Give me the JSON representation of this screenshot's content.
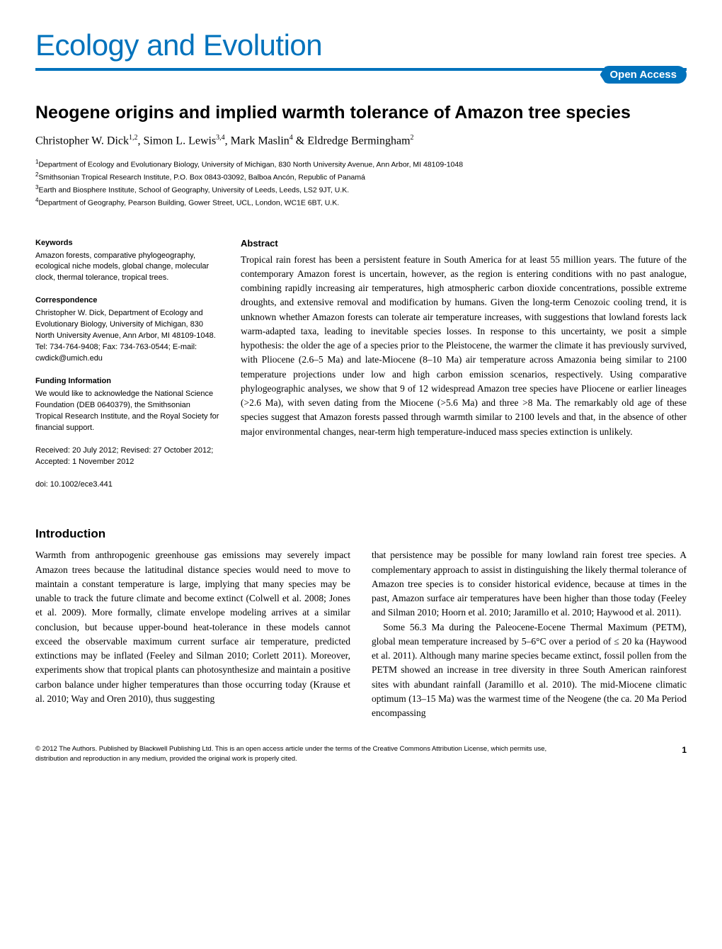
{
  "journal": {
    "name": "Ecology and Evolution",
    "open_access": "Open Access",
    "brand_color": "#0072bc"
  },
  "article": {
    "title": "Neogene origins and implied warmth tolerance of Amazon tree species",
    "authors_html": "Christopher W. Dick<sup>1,2</sup>, Simon L. Lewis<sup>3,4</sup>, Mark Maslin<sup>4</sup> & Eldredge Bermingham<sup>2</sup>",
    "affiliations": [
      "Department of Ecology and Evolutionary Biology, University of Michigan, 830 North University Avenue, Ann Arbor, MI 48109-1048",
      "Smithsonian Tropical Research Institute, P.O. Box 0843-03092, Balboa Ancón, Republic of Panamá",
      "Earth and Biosphere Institute, School of Geography, University of Leeds, Leeds, LS2 9JT, U.K.",
      "Department of Geography, Pearson Building, Gower Street, UCL, London, WC1E 6BT, U.K."
    ]
  },
  "sidebar": {
    "keywords_label": "Keywords",
    "keywords_text": "Amazon forests, comparative phylogeography, ecological niche models, global change, molecular clock, thermal tolerance, tropical trees.",
    "correspondence_label": "Correspondence",
    "correspondence_text": "Christopher W. Dick, Department of Ecology and Evolutionary Biology, University of Michigan, 830 North University Avenue, Ann Arbor, MI 48109-1048. Tel: 734-764-9408; Fax: 734-763-0544; E-mail: cwdick@umich.edu",
    "funding_label": "Funding Information",
    "funding_text": "We would like to acknowledge the National Science Foundation (DEB 0640379), the Smithsonian Tropical Research Institute, and the Royal Society for financial support.",
    "dates_text": "Received: 20 July 2012; Revised: 27 October 2012; Accepted: 1 November 2012",
    "doi_text": "doi: 10.1002/ece3.441"
  },
  "abstract": {
    "label": "Abstract",
    "text": "Tropical rain forest has been a persistent feature in South America for at least 55 million years. The future of the contemporary Amazon forest is uncertain, however, as the region is entering conditions with no past analogue, combining rapidly increasing air temperatures, high atmospheric carbon dioxide concentrations, possible extreme droughts, and extensive removal and modification by humans. Given the long-term Cenozoic cooling trend, it is unknown whether Amazon forests can tolerate air temperature increases, with suggestions that lowland forests lack warm-adapted taxa, leading to inevitable species losses. In response to this uncertainty, we posit a simple hypothesis: the older the age of a species prior to the Pleistocene, the warmer the climate it has previously survived, with Pliocene (2.6–5 Ma) and late-Miocene (8–10 Ma) air temperature across Amazonia being similar to 2100 temperature projections under low and high carbon emission scenarios, respectively. Using comparative phylogeographic analyses, we show that 9 of 12 widespread Amazon tree species have Pliocene or earlier lineages (>2.6 Ma), with seven dating from the Miocene (>5.6 Ma) and three >8 Ma. The remarkably old age of these species suggest that Amazon forests passed through warmth similar to 2100 levels and that, in the absence of other major environmental changes, near-term high temperature-induced mass species extinction is unlikely."
  },
  "intro": {
    "heading": "Introduction",
    "col1_p1": "Warmth from anthropogenic greenhouse gas emissions may severely impact Amazon trees because the latitudinal distance species would need to move to maintain a constant temperature is large, implying that many species may be unable to track the future climate and become extinct (Colwell et al. 2008; Jones et al. 2009). More formally, climate envelope modeling arrives at a similar conclusion, but because upper-bound heat-tolerance in these models cannot exceed the observable maximum current surface air temperature, predicted extinctions may be inflated (Feeley and Silman 2010; Corlett 2011). Moreover, experiments show that tropical plants can photosynthesize and maintain a positive carbon balance under higher temperatures than those occurring today (Krause et al. 2010; Way and Oren 2010), thus suggesting",
    "col2_p1": "that persistence may be possible for many lowland rain forest tree species. A complementary approach to assist in distinguishing the likely thermal tolerance of Amazon tree species is to consider historical evidence, because at times in the past, Amazon surface air temperatures have been higher than those today (Feeley and Silman 2010; Hoorn et al. 2010; Jaramillo et al. 2010; Haywood et al. 2011).",
    "col2_p2": "Some 56.3 Ma during the Paleocene-Eocene Thermal Maximum (PETM), global mean temperature increased by 5–6°C over a period of ≤ 20 ka (Haywood et al. 2011). Although many marine species became extinct, fossil pollen from the PETM showed an increase in tree diversity in three South American rainforest sites with abundant rainfall (Jaramillo et al. 2010). The mid-Miocene climatic optimum (13–15 Ma) was the warmest time of the Neogene (the ca. 20 Ma Period encompassing"
  },
  "footer": {
    "copyright": "© 2012 The Authors. Published by Blackwell Publishing Ltd. This is an open access article under the terms of the Creative Commons Attribution License, which permits use, distribution and reproduction in any medium, provided the original work is properly cited.",
    "page_number": "1"
  }
}
